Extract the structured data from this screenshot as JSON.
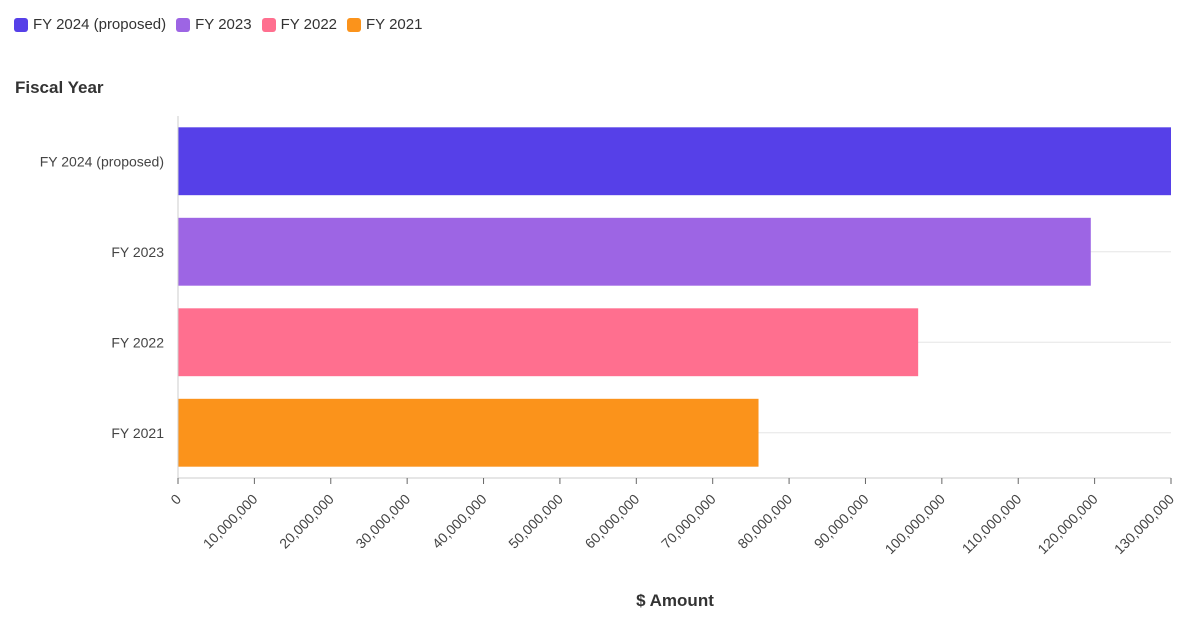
{
  "chart_data": {
    "type": "bar",
    "orientation": "horizontal",
    "categories": [
      "FY 2024 (proposed)",
      "FY 2023",
      "FY 2022",
      "FY 2021"
    ],
    "values": [
      130000000,
      119500000,
      96900000,
      76000000
    ],
    "colors": [
      "#5640e8",
      "#9d65e4",
      "#ff6f8f",
      "#fb931b"
    ],
    "ylabel": "Fiscal Year",
    "xlabel": "$ Amount",
    "xlim": [
      0,
      130000000
    ],
    "x_ticks": [
      0,
      10000000,
      20000000,
      30000000,
      40000000,
      50000000,
      60000000,
      70000000,
      80000000,
      90000000,
      100000000,
      110000000,
      120000000,
      130000000
    ],
    "x_tick_labels": [
      "0",
      "10,000,000",
      "20,000,000",
      "30,000,000",
      "40,000,000",
      "50,000,000",
      "60,000,000",
      "70,000,000",
      "80,000,000",
      "90,000,000",
      "100,000,000",
      "110,000,000",
      "120,000,000",
      "130,000,000"
    ],
    "grid": "horizontal-lines",
    "legend_position": "top-left",
    "legend": [
      {
        "label": "FY 2024 (proposed)",
        "color": "#5640e8"
      },
      {
        "label": "FY 2023",
        "color": "#9d65e4"
      },
      {
        "label": "FY 2022",
        "color": "#ff6f8f"
      },
      {
        "label": "FY 2021",
        "color": "#fb931b"
      }
    ]
  }
}
